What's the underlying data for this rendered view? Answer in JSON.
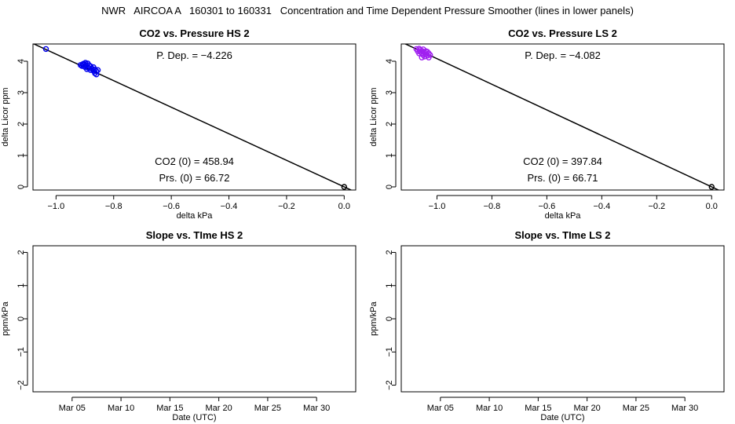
{
  "title": "NWR   AIRCOA A   160301 to 160331   Concentration and Time Dependent Pressure Smoother (lines in lower panels)",
  "chart_data": [
    {
      "type": "scatter",
      "title": "CO2 vs. Pressure HS 2",
      "xlabel": "delta kPa",
      "ylabel": "delta Licor ppm",
      "xlim": [
        -1.08,
        0.04
      ],
      "ylim": [
        -0.1,
        4.55
      ],
      "xticks": [
        -1.0,
        -0.8,
        -0.6,
        -0.4,
        -0.2,
        0.0
      ],
      "xtick_labels": [
        "−1.0",
        "−0.8",
        "−0.6",
        "−0.4",
        "−0.2",
        "0.0"
      ],
      "yticks": [
        0,
        1,
        2,
        3,
        4
      ],
      "ytick_labels": [
        "0",
        "1",
        "2",
        "3",
        "4"
      ],
      "point_color": "#0000ee",
      "fit_line": {
        "slope": -4.226,
        "intercept": 0
      },
      "points": [
        [
          -1.035,
          4.39
        ],
        [
          -0.915,
          3.88
        ],
        [
          -0.91,
          3.85
        ],
        [
          -0.905,
          3.92
        ],
        [
          -0.9,
          3.82
        ],
        [
          -0.9,
          3.9
        ],
        [
          -0.895,
          3.86
        ],
        [
          -0.89,
          3.8
        ],
        [
          -0.89,
          3.93
        ],
        [
          -0.885,
          3.78
        ],
        [
          -0.885,
          3.87
        ],
        [
          -0.88,
          3.72
        ],
        [
          -0.88,
          3.84
        ],
        [
          -0.875,
          3.76
        ],
        [
          -0.87,
          3.7
        ],
        [
          -0.87,
          3.81
        ],
        [
          -0.865,
          3.74
        ],
        [
          -0.865,
          3.62
        ],
        [
          -0.86,
          3.68
        ],
        [
          -0.855,
          3.72
        ],
        [
          -0.86,
          3.58
        ],
        [
          -0.898,
          3.95
        ],
        [
          -0.908,
          3.9
        ],
        [
          -0.893,
          3.75
        ],
        [
          0.0,
          0.0
        ]
      ],
      "annotations": {
        "pdep": "P. Dep. =  −4.226",
        "co2": "CO2 (0) =  458.94",
        "prs": "Prs. (0) =  66.72"
      }
    },
    {
      "type": "scatter",
      "title": "CO2 vs. Pressure LS 2",
      "xlabel": "delta kPa",
      "ylabel": "delta Licor ppm",
      "xlim": [
        -1.13,
        0.045
      ],
      "ylim": [
        -0.1,
        4.55
      ],
      "xticks": [
        -1.0,
        -0.8,
        -0.6,
        -0.4,
        -0.2,
        0.0
      ],
      "xtick_labels": [
        "−1.0",
        "−0.8",
        "−0.6",
        "−0.4",
        "−0.2",
        "0.0"
      ],
      "yticks": [
        0,
        1,
        2,
        3,
        4
      ],
      "ytick_labels": [
        "0",
        "1",
        "2",
        "3",
        "4"
      ],
      "point_color": "#a020f0",
      "fit_line": {
        "slope": -4.082,
        "intercept": 0
      },
      "points": [
        [
          -1.075,
          4.39
        ],
        [
          -1.07,
          4.32
        ],
        [
          -1.065,
          4.4
        ],
        [
          -1.06,
          4.3
        ],
        [
          -1.06,
          4.36
        ],
        [
          -1.055,
          4.25
        ],
        [
          -1.055,
          4.33
        ],
        [
          -1.05,
          4.2
        ],
        [
          -1.05,
          4.38
        ],
        [
          -1.045,
          4.28
        ],
        [
          -1.045,
          4.15
        ],
        [
          -1.04,
          4.22
        ],
        [
          -1.04,
          4.32
        ],
        [
          -1.035,
          4.18
        ],
        [
          -1.03,
          4.25
        ],
        [
          -1.03,
          4.12
        ],
        [
          -1.025,
          4.2
        ],
        [
          -1.065,
          4.25
        ],
        [
          -1.055,
          4.12
        ],
        [
          -1.035,
          4.3
        ],
        [
          0.0,
          0.0
        ]
      ],
      "annotations": {
        "pdep": "P. Dep. =  −4.082",
        "co2": "CO2 (0) =  397.84",
        "prs": "Prs. (0) =  66.71"
      }
    },
    {
      "type": "line",
      "title": "Slope vs. TIme HS 2",
      "xlabel": "Date (UTC)",
      "ylabel": "ppm/kPa",
      "xlim": [
        0,
        33
      ],
      "ylim": [
        -2.2,
        2.2
      ],
      "xticks": [
        4,
        9,
        14,
        19,
        24,
        29
      ],
      "xtick_labels": [
        "Mar 05",
        "Mar 10",
        "Mar 15",
        "Mar 20",
        "Mar 25",
        "Mar 30"
      ],
      "yticks": [
        -2,
        -1,
        0,
        1,
        2
      ],
      "ytick_labels": [
        "−2",
        "−1",
        "0",
        "1",
        "2"
      ],
      "series": []
    },
    {
      "type": "line",
      "title": "Slope vs. TIme LS 2",
      "xlabel": "Date (UTC)",
      "ylabel": "ppm/kPa",
      "xlim": [
        0,
        33
      ],
      "ylim": [
        -2.2,
        2.2
      ],
      "xticks": [
        4,
        9,
        14,
        19,
        24,
        29
      ],
      "xtick_labels": [
        "Mar 05",
        "Mar 10",
        "Mar 15",
        "Mar 20",
        "Mar 25",
        "Mar 30"
      ],
      "yticks": [
        -2,
        -1,
        0,
        1,
        2
      ],
      "ytick_labels": [
        "−2",
        "−1",
        "0",
        "1",
        "2"
      ],
      "series": []
    }
  ]
}
